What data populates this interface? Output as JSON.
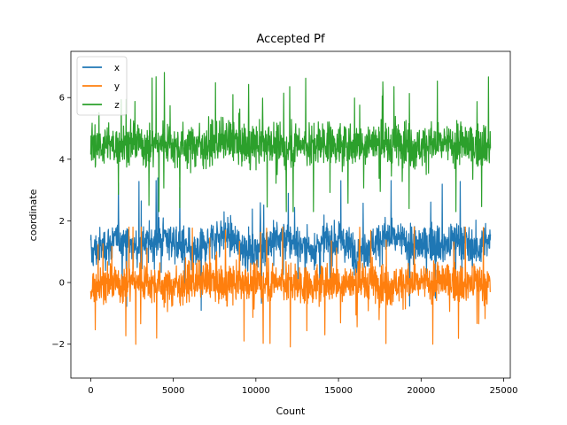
{
  "chart_data": {
    "type": "line",
    "title": "Accepted Pf",
    "xlabel": "Count",
    "ylabel": "coordinate",
    "xlim": [
      -1200,
      25400
    ],
    "ylim": [
      -3.1,
      7.5
    ],
    "xticks": [
      0,
      5000,
      10000,
      15000,
      20000,
      25000
    ],
    "yticks": [
      -2,
      0,
      2,
      4,
      6
    ],
    "ytick_labels": [
      "−2",
      "0",
      "2",
      "4",
      "6"
    ],
    "n_points": 24200,
    "legend_position": "upper-left",
    "series": [
      {
        "name": "x",
        "color": "#1f77b4",
        "samples": [
          0.95,
          1.2,
          1.4,
          1.1,
          1.3,
          1.5,
          1.2,
          0.9,
          1.35,
          1.6,
          1.25,
          1.0,
          1.3,
          1.45,
          1.2,
          1.1,
          1.4,
          1.3,
          1.0,
          1.25,
          1.5,
          1.35,
          1.15,
          1.3,
          1.2,
          1.45,
          1.1,
          1.3
        ],
        "spread": 0.45,
        "band_min": -1.2,
        "band_max": 3.4
      },
      {
        "name": "y",
        "color": "#ff7f0e",
        "samples": [
          -0.1,
          0.0,
          -0.05,
          0.05,
          0.0,
          -0.15,
          -0.05,
          0.0,
          0.05,
          -0.1,
          0.0,
          -0.05,
          0.0,
          0.05,
          -0.05,
          -0.1,
          0.0,
          0.0,
          -0.05,
          0.05,
          -0.1,
          0.0,
          -0.05,
          0.0,
          0.05,
          -0.05,
          0.0,
          -0.1
        ],
        "spread": 0.45,
        "band_min": -2.6,
        "band_max": 1.8
      },
      {
        "name": "z",
        "color": "#2ca02c",
        "samples": [
          4.6,
          4.4,
          4.5,
          4.55,
          4.4,
          4.6,
          4.35,
          4.5,
          4.45,
          4.6,
          4.5,
          4.4,
          4.55,
          4.3,
          4.5,
          4.45,
          4.6,
          4.4,
          4.5,
          4.55,
          4.45,
          4.6,
          4.4,
          4.5,
          4.45,
          4.5,
          4.4,
          4.5
        ],
        "spread": 0.5,
        "band_min": 2.3,
        "band_max": 7.2
      }
    ]
  }
}
